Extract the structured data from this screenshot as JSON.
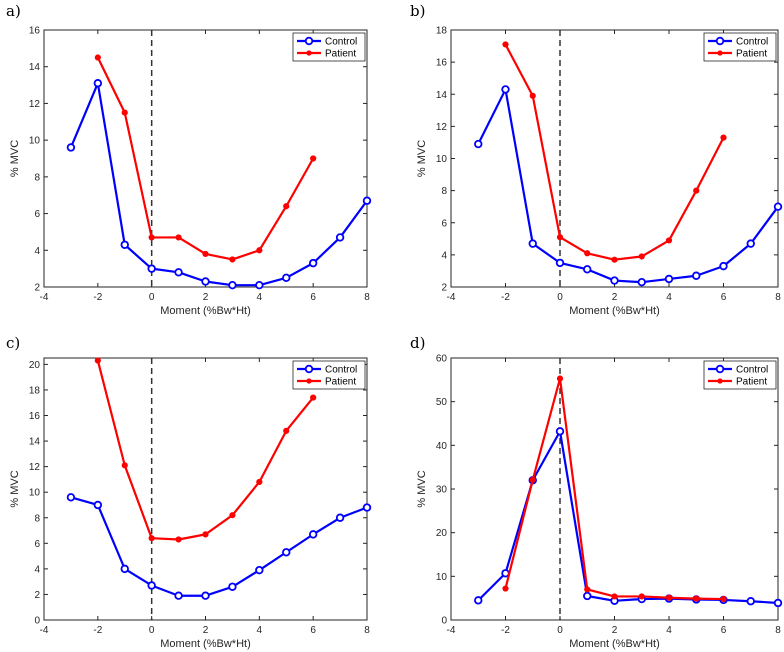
{
  "chart_data": [
    {
      "panel_label": "a)",
      "type": "line",
      "xlabel": "Moment (%Bw*Ht)",
      "ylabel": "% MVC",
      "xlim": [
        -4,
        8
      ],
      "ylim": [
        2,
        16
      ],
      "xticks": [
        "-4",
        "-2",
        "0",
        "2",
        "4",
        "6",
        "8"
      ],
      "yticks": [
        "2",
        "4",
        "6",
        "8",
        "10",
        "12",
        "14",
        "16"
      ],
      "legend_position": "top-right",
      "reference_line_x": 0,
      "series": [
        {
          "name": "Control",
          "color": "#0000ff",
          "marker": "open-circle",
          "x": [
            -3,
            -2,
            -1,
            0,
            1,
            2,
            3,
            4,
            5,
            6,
            7,
            8
          ],
          "y": [
            9.6,
            13.1,
            4.3,
            3.0,
            2.8,
            2.3,
            2.1,
            2.1,
            2.5,
            3.3,
            4.7,
            6.7
          ]
        },
        {
          "name": "Patient",
          "color": "#ff0000",
          "marker": "filled-dot",
          "x": [
            -2,
            -1,
            0,
            1,
            2,
            3,
            4,
            5,
            6
          ],
          "y": [
            14.5,
            11.5,
            4.7,
            4.7,
            3.8,
            3.5,
            4.0,
            6.4,
            9.0
          ]
        }
      ]
    },
    {
      "panel_label": "b)",
      "type": "line",
      "xlabel": "Moment (%Bw*Ht)",
      "ylabel": "% MVC",
      "xlim": [
        -4,
        8
      ],
      "ylim": [
        2,
        18
      ],
      "xticks": [
        "-4",
        "-2",
        "0",
        "2",
        "4",
        "6",
        "8"
      ],
      "yticks": [
        "2",
        "4",
        "6",
        "8",
        "10",
        "12",
        "14",
        "16",
        "18"
      ],
      "legend_position": "top-right",
      "reference_line_x": 0,
      "series": [
        {
          "name": "Control",
          "color": "#0000ff",
          "marker": "open-circle",
          "x": [
            -3,
            -2,
            -1,
            0,
            1,
            2,
            3,
            4,
            5,
            6,
            7,
            8
          ],
          "y": [
            10.9,
            14.3,
            4.7,
            3.5,
            3.1,
            2.4,
            2.3,
            2.5,
            2.7,
            3.3,
            4.7,
            7.0
          ]
        },
        {
          "name": "Patient",
          "color": "#ff0000",
          "marker": "filled-dot",
          "x": [
            -2,
            -1,
            0,
            1,
            2,
            3,
            4,
            5,
            6
          ],
          "y": [
            17.1,
            13.9,
            5.1,
            4.1,
            3.7,
            3.9,
            4.9,
            8.0,
            11.3
          ]
        }
      ]
    },
    {
      "panel_label": "c)",
      "type": "line",
      "xlabel": "Moment (%Bw*Ht)",
      "ylabel": "% MVC",
      "xlim": [
        -4,
        8
      ],
      "ylim": [
        0,
        20.5
      ],
      "xticks": [
        "-4",
        "-2",
        "0",
        "2",
        "4",
        "6",
        "8"
      ],
      "yticks": [
        "0",
        "2",
        "4",
        "6",
        "8",
        "10",
        "12",
        "14",
        "16",
        "18",
        "20"
      ],
      "legend_position": "top-right",
      "reference_line_x": 0,
      "series": [
        {
          "name": "Control",
          "color": "#0000ff",
          "marker": "open-circle",
          "x": [
            -3,
            -2,
            -1,
            0,
            1,
            2,
            3,
            4,
            5,
            6,
            7,
            8
          ],
          "y": [
            9.6,
            9.0,
            4.0,
            2.7,
            1.9,
            1.9,
            2.6,
            3.9,
            5.3,
            6.7,
            8.0,
            8.8
          ]
        },
        {
          "name": "Patient",
          "color": "#ff0000",
          "marker": "filled-dot",
          "x": [
            -2,
            -1,
            0,
            1,
            2,
            3,
            4,
            5,
            6
          ],
          "y": [
            20.3,
            12.1,
            6.4,
            6.3,
            6.7,
            8.2,
            10.8,
            14.8,
            17.4
          ]
        }
      ]
    },
    {
      "panel_label": "d)",
      "type": "line",
      "xlabel": "Moment (%Bw*Ht)",
      "ylabel": "% MVC",
      "xlim": [
        -4,
        8
      ],
      "ylim": [
        0,
        60
      ],
      "xticks": [
        "-4",
        "-2",
        "0",
        "2",
        "4",
        "6",
        "8"
      ],
      "yticks": [
        "0",
        "10",
        "20",
        "30",
        "40",
        "50",
        "60"
      ],
      "legend_position": "top-right",
      "reference_line_x": 0,
      "series": [
        {
          "name": "Control",
          "color": "#0000ff",
          "marker": "open-circle",
          "x": [
            -3,
            -2,
            -1,
            0,
            1,
            2,
            3,
            4,
            5,
            6,
            7,
            8
          ],
          "y": [
            4.5,
            10.7,
            32.0,
            43.2,
            5.5,
            4.4,
            4.8,
            4.9,
            4.7,
            4.6,
            4.3,
            3.9
          ]
        },
        {
          "name": "Patient",
          "color": "#ff0000",
          "marker": "filled-dot",
          "x": [
            -2,
            -1,
            0,
            1,
            2,
            3,
            4,
            5,
            6
          ],
          "y": [
            7.2,
            32.1,
            55.3,
            7.0,
            5.4,
            5.4,
            5.1,
            4.9,
            4.8
          ]
        }
      ]
    }
  ]
}
